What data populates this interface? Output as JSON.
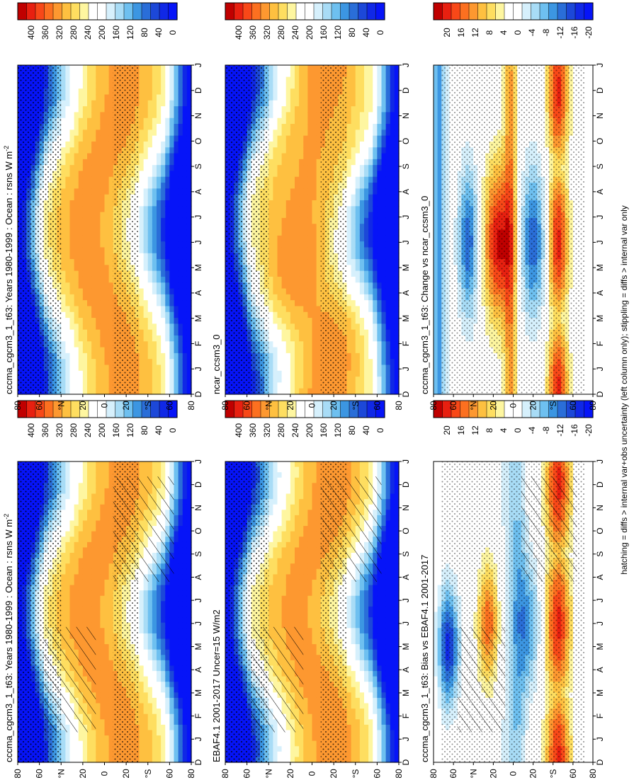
{
  "footnote": "hatching = diffs > internal var+obs uncertainty (left column only); stippling = diffs > internal var only",
  "months": [
    "D",
    "J",
    "F",
    "M",
    "A",
    "M",
    "J",
    "J",
    "A",
    "S",
    "O",
    "N",
    "D",
    "J"
  ],
  "lat_ticks": [
    "80",
    "60",
    "°N",
    "20",
    "0",
    "20",
    "°S",
    "60",
    "80"
  ],
  "colorbars": {
    "abs": {
      "labels": [
        "400",
        "360",
        "320",
        "280",
        "240",
        "200",
        "160",
        "120",
        "80",
        "40",
        "0"
      ],
      "colors": [
        "#c00000",
        "#e82010",
        "#f84818",
        "#fc7020",
        "#fd9830",
        "#fec040",
        "#fede60",
        "#fef6a0",
        "#ffffff",
        "#ffffff",
        "#d6f0fc",
        "#a8dcf6",
        "#6ec0f0",
        "#3c96e2",
        "#2a6ed8",
        "#1c48d8",
        "#1028e6",
        "#0614f8"
      ],
      "range": [
        0,
        440
      ]
    },
    "diff": {
      "labels": [
        "20",
        "16",
        "12",
        "8",
        "4",
        "0",
        "-4",
        "-8",
        "-12",
        "-16",
        "-20"
      ],
      "colors": [
        "#c00000",
        "#e82010",
        "#f84818",
        "#fc7020",
        "#fd9830",
        "#fec040",
        "#fede60",
        "#fef6a0",
        "#ffffff",
        "#ffffff",
        "#d6f0fc",
        "#a8dcf6",
        "#6ec0f0",
        "#3c96e2",
        "#2a6ed8",
        "#1c48d8",
        "#1028e6",
        "#0614f8"
      ],
      "range": [
        -22,
        22
      ]
    }
  },
  "panels": [
    {
      "id": "p1",
      "title": "cccma_cgcm3_1_t63: Years 1980-1999 : Ocean : rsns W m",
      "title_sup": "-2",
      "kind": "abs",
      "field": "model",
      "hatch": true
    },
    {
      "id": "p2",
      "title": "EBAF4.1 2001-2017 Uncer=15 W/m2",
      "title_sup": "",
      "kind": "abs",
      "field": "obs",
      "hatch": true
    },
    {
      "id": "p3",
      "title": "cccma_cgcm3_1_t63: Bias vs EBAF4.1 2001-2017",
      "title_sup": "",
      "kind": "diff",
      "field": "bias",
      "hatch": true
    },
    {
      "id": "p4",
      "title": "cccma_cgcm3_1_t63: Years 1980-1999 : Ocean : rsns W m",
      "title_sup": "-2",
      "kind": "abs",
      "field": "model",
      "hatch": false
    },
    {
      "id": "p5",
      "title": "ncar_ccsm3_0",
      "title_sup": "",
      "kind": "abs",
      "field": "model2",
      "hatch": false
    },
    {
      "id": "p6",
      "title": "cccma_cgcm3_1_t63: Change vs ncar_ccsm3_0",
      "title_sup": "",
      "kind": "diff",
      "field": "change",
      "hatch": false
    }
  ],
  "chart_data": {
    "type": "heatmap",
    "variable": "rsns (net surface shortwave over ocean)",
    "units": "W m-2",
    "x": "month (D, J ... D, J)",
    "y": "latitude (80N to 80S)",
    "description_fields": {
      "model": "zonal-mean seasonal cycle, max ~320 in summer hemisphere, ~0 in polar winter",
      "obs": "EBAF4.1 reference, similar pattern",
      "model2": "ncar_ccsm3_0",
      "bias": "model minus obs, range -20 to 20",
      "change": "model minus ncar_ccsm3_0, range -20 to 20"
    }
  }
}
